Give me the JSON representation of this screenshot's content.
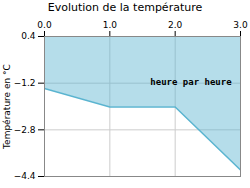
{
  "chart_data": {
    "type": "area",
    "title": "Evolution de la température",
    "ylabel": "Température en °C",
    "x": [
      0,
      1,
      2,
      3
    ],
    "values": [
      -1.38,
      -2.02,
      -2.02,
      -4.18
    ],
    "color": "#5ab4d0",
    "xlim": [
      0,
      3
    ],
    "ylim": [
      -4.4,
      0.4
    ],
    "xticks": [
      0,
      1,
      2,
      3
    ],
    "yticks": [
      0.4,
      -1.2,
      -2.8,
      -4.4
    ],
    "grid": true,
    "annotations": [
      {
        "text": "heure par heure",
        "x": 1.62,
        "y": -1.05
      }
    ]
  }
}
